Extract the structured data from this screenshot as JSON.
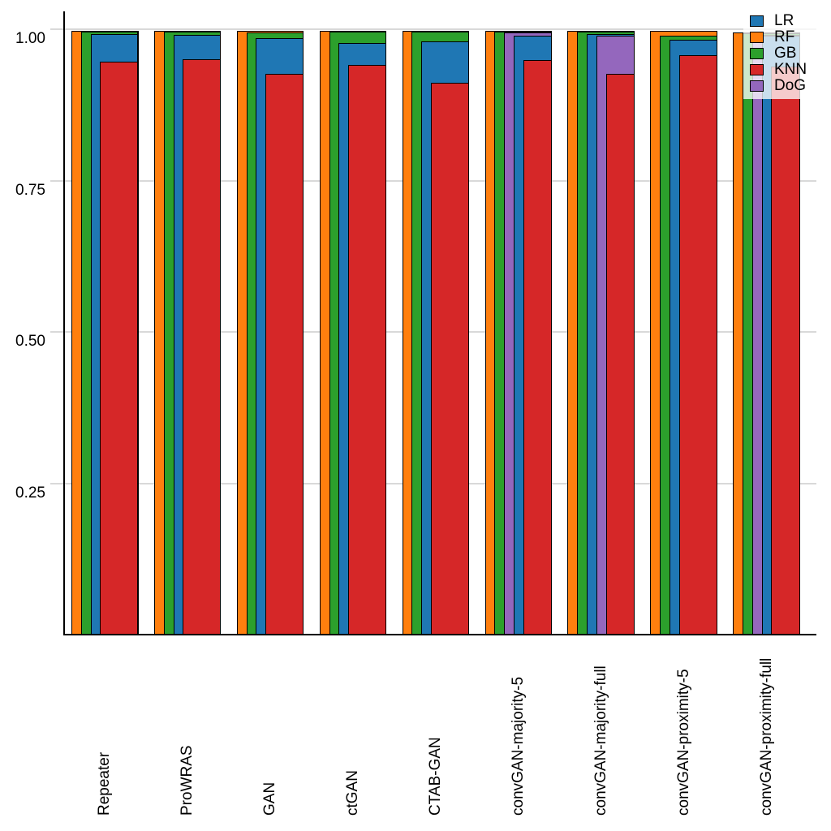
{
  "chart_data": {
    "type": "bar",
    "style": "overlapping-nested-bars-sorted-descending",
    "title": "",
    "xlabel": "",
    "ylabel": "",
    "ylim": [
      0,
      1.0
    ],
    "yticks": [
      0.25,
      0.5,
      0.75,
      1.0
    ],
    "ytick_labels": [
      "0.25",
      "0.50",
      "0.75",
      "1.00"
    ],
    "grid": "horizontal-only",
    "legend_position": "top-right",
    "categories": [
      "Repeater",
      "ProWRAS",
      "GAN",
      "ctGAN",
      "CTAB-GAN",
      "convGAN-majority-5",
      "convGAN-majority-full",
      "convGAN-proximity-5",
      "convGAN-proximity-full"
    ],
    "series": [
      {
        "name": "LR",
        "color": "#1f77b4",
        "values": [
          0.992,
          0.991,
          0.985,
          0.977,
          0.98,
          0.99,
          0.992,
          0.983,
          0.99
        ]
      },
      {
        "name": "RF",
        "color": "#ff7f0e",
        "values": [
          0.997,
          0.997,
          0.997,
          0.997,
          0.997,
          0.997,
          0.997,
          0.997,
          0.995
        ]
      },
      {
        "name": "GB",
        "color": "#2ca02c",
        "values": [
          0.996,
          0.996,
          0.995,
          0.996,
          0.996,
          0.996,
          0.996,
          0.99,
          0.994
        ]
      },
      {
        "name": "KNN",
        "color": "#d62728",
        "values": [
          0.947,
          0.951,
          0.927,
          0.941,
          0.911,
          0.949,
          0.927,
          0.957,
          0.939
        ]
      },
      {
        "name": "DoG",
        "color": "#9467bd",
        "values": [
          null,
          null,
          null,
          null,
          null,
          0.995,
          0.99,
          null,
          0.991
        ]
      }
    ],
    "bar_border_color": "#000000",
    "gridline_color": "#d9d9d9",
    "axis_color": "#000000"
  }
}
